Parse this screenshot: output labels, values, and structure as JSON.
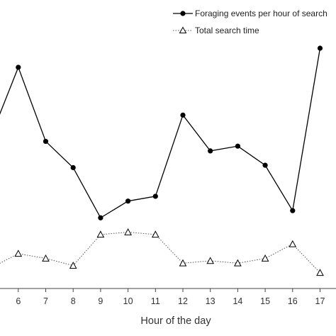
{
  "chart_data": {
    "type": "line",
    "title": "",
    "xlabel": "Hour of the day",
    "ylabel": "",
    "x": [
      5,
      6,
      7,
      8,
      9,
      10,
      11,
      12,
      13,
      14,
      15,
      16,
      17
    ],
    "x_tick_labels": [
      "6",
      "7",
      "8",
      "9",
      "10",
      "11",
      "12",
      "13",
      "14",
      "15",
      "16",
      "17"
    ],
    "xlim": [
      5.3,
      17.2
    ],
    "ylim": [
      0,
      10
    ],
    "grid": false,
    "legend_position": "top-right",
    "series": [
      {
        "name": "Foraging events per hour of search",
        "marker": "filled-circle",
        "line_style": "solid",
        "color": "#000000",
        "values": [
          6.3,
          9.2,
          6.1,
          5.0,
          2.9,
          3.6,
          3.8,
          7.2,
          5.7,
          5.9,
          5.1,
          3.2,
          10.0
        ]
      },
      {
        "name": "Total search time",
        "marker": "open-triangle",
        "line_style": "dotted",
        "color": "#000000",
        "values": [
          0.8,
          1.4,
          1.2,
          0.9,
          2.2,
          2.3,
          2.2,
          1.0,
          1.1,
          1.0,
          1.2,
          1.8,
          0.6
        ]
      }
    ]
  }
}
